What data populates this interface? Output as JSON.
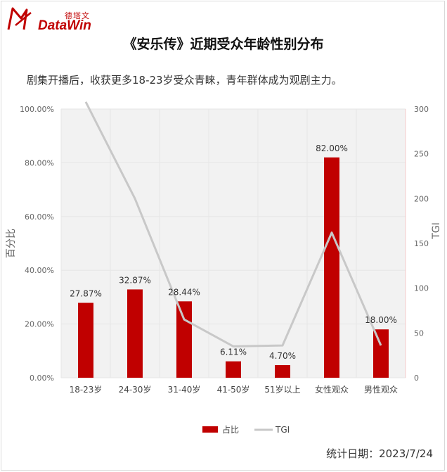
{
  "logo": {
    "cn": "德塔文",
    "en": "DataWin"
  },
  "header": {
    "title": "《安乐传》近期受众年龄性别分布",
    "subtitle": "剧集开播后，收获更多18-23岁受众青睐，青年群体成为观剧主力。"
  },
  "footer": {
    "date_label": "统计日期：2023/7/24"
  },
  "colors": {
    "bar": "#c00000",
    "tgi_line": "#c8c8c8",
    "grid": "#e6e6e6",
    "plot_bg": "#f2f2f2"
  },
  "chart_data": {
    "type": "bar",
    "categories": [
      "18-23岁",
      "24-30岁",
      "31-40岁",
      "41-50岁",
      "51岁以上",
      "女性观众",
      "男性观众"
    ],
    "series": [
      {
        "name": "占比",
        "type": "bar",
        "axis": "left",
        "values": [
          27.87,
          32.87,
          28.44,
          6.11,
          4.7,
          82.0,
          18.0
        ],
        "labels": [
          "27.87%",
          "32.87%",
          "28.44%",
          "6.11%",
          "4.70%",
          "82.00%",
          "18.00%"
        ]
      },
      {
        "name": "TGI",
        "type": "line",
        "axis": "right",
        "values": [
          308,
          200,
          65,
          35,
          36,
          162,
          36
        ]
      }
    ],
    "ylabel": "百分比",
    "ylabel_right": "TGI",
    "ylim": [
      0,
      100
    ],
    "ylim_right": [
      0,
      300
    ],
    "yticks": [
      "0.00%",
      "20.00%",
      "40.00%",
      "60.00%",
      "80.00%",
      "100.00%"
    ],
    "yticks_right": [
      "0",
      "50",
      "100",
      "150",
      "200",
      "250",
      "300"
    ],
    "legend_position": "bottom",
    "grid": true
  }
}
